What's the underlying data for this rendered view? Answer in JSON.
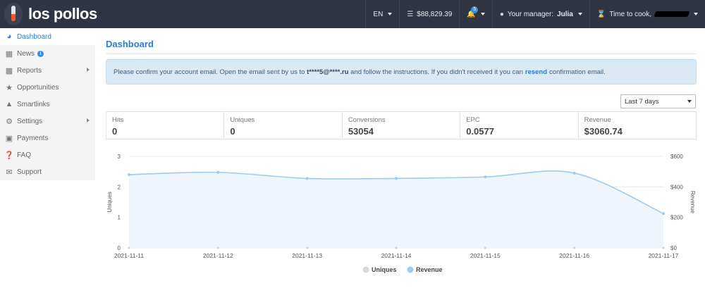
{
  "brand": {
    "name": "los pollos"
  },
  "topnav": {
    "language": "EN",
    "balance": "$88,829.39",
    "notifications_count": "5",
    "manager_label": "Your manager:",
    "manager_name": "Julia",
    "time_to_cook": "Time to cook,"
  },
  "sidebar": {
    "items": [
      {
        "label": "Dashboard",
        "icon": "dashboard-icon"
      },
      {
        "label": "News",
        "icon": "calendar-icon"
      },
      {
        "label": "Reports",
        "icon": "bar-chart-icon"
      },
      {
        "label": "Opportunities",
        "icon": "star-icon"
      },
      {
        "label": "Smartlinks",
        "icon": "flask-icon"
      },
      {
        "label": "Settings",
        "icon": "gear-icon"
      },
      {
        "label": "Payments",
        "icon": "briefcase-icon"
      },
      {
        "label": "FAQ",
        "icon": "question-icon"
      },
      {
        "label": "Support",
        "icon": "envelope-icon"
      }
    ]
  },
  "main": {
    "title": "Dashboard",
    "alert": {
      "prefix": "Please confirm your account email. Open the email sent by us to",
      "email": "t****5@****.ru",
      "middle": "and follow the instructions. If you didn't received it you can",
      "link": "resend",
      "suffix": "confirmation email."
    },
    "range_select": "Last 7 days",
    "stats": [
      {
        "label": "Hits",
        "value": "0"
      },
      {
        "label": "Uniques",
        "value": "0"
      },
      {
        "label": "Conversions",
        "value": "53054"
      },
      {
        "label": "EPC",
        "value": "0.0577"
      },
      {
        "label": "Revenue",
        "value": "$3060.74"
      }
    ]
  },
  "colors": {
    "accent": "#2b7bd0",
    "topbar": "#2f3542",
    "revenue": "#9ecbee",
    "uniques": "#d9d9d9"
  },
  "chart_data": {
    "type": "line",
    "x": [
      "2021-11-11",
      "2021-11-12",
      "2021-11-13",
      "2021-11-14",
      "2021-11-15",
      "2021-11-16",
      "2021-11-17"
    ],
    "ylabel": "Uniques",
    "y2label": "Revenue",
    "ylim": [
      0,
      3
    ],
    "yticks": [
      "0",
      "1",
      "2",
      "3"
    ],
    "y2lim": [
      0,
      600
    ],
    "y2ticks": [
      "$0",
      "$200",
      "$400",
      "$600"
    ],
    "series": [
      {
        "name": "Uniques",
        "axis": "left",
        "values": [
          0,
          0,
          0,
          0,
          0,
          0,
          0
        ]
      },
      {
        "name": "Revenue",
        "axis": "right",
        "values": [
          480,
          495,
          455,
          455,
          465,
          490,
          225
        ]
      }
    ],
    "legend": "bottom",
    "grid": true
  }
}
